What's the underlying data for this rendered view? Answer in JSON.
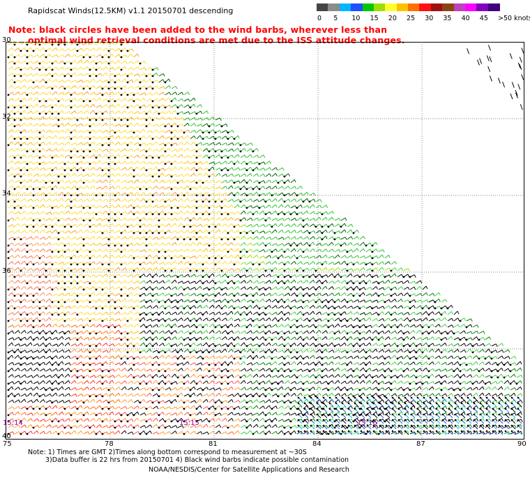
{
  "header": {
    "title": "Rapidscat Winds(12.5KM) v1.1 20150701 descending",
    "note_line1": "Note: black circles have been added to the wind barbs, wherever less than",
    "note_line2": "optimal wind retrieval conditions are met due to the ISS attitude changes."
  },
  "colorbar": {
    "colors": [
      "#454545",
      "#8c8c8c",
      "#00b4ff",
      "#2050ff",
      "#00c800",
      "#9be000",
      "#ffff30",
      "#ffc000",
      "#ff7000",
      "#ff1010",
      "#a01010",
      "#8b4513",
      "#c040c0",
      "#ff00ff",
      "#8000c0",
      "#400080"
    ],
    "labels": [
      "0",
      "5",
      "10",
      "15",
      "20",
      "25",
      "30",
      "35",
      "40",
      "45",
      ">50 knots"
    ]
  },
  "axes": {
    "lat_labels": [
      "30",
      "32",
      "34",
      "36",
      "",
      "40"
    ],
    "lon_labels": [
      "75",
      "78",
      "81",
      "84",
      "87",
      "90"
    ]
  },
  "time_labels": [
    {
      "text": "15:14",
      "color": "#a000a0"
    },
    {
      "text": "15:15",
      "color": "#a000a0"
    },
    {
      "text": "15:16",
      "color": "#a000a0"
    }
  ],
  "footer": {
    "line1": "Note: 1) Times are GMT 2)Times along bottom correspond to measurement at ~30S",
    "line2": "3)Data buffer is 22 hrs from 20150701 4) Black wind barbs indicate possible contamination",
    "line3": "NOAA/NESDIS/Center for Satellite Applications and Research"
  }
}
